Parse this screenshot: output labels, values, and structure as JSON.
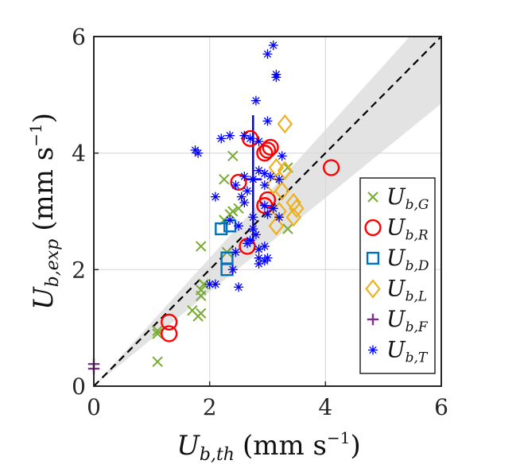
{
  "chart_data": {
    "type": "scatter",
    "title": "",
    "xlabel": {
      "symbol": "U",
      "subscript": "b,th",
      "unit_open": "(mm s",
      "unit_exp": "−1",
      "unit_close": ")"
    },
    "ylabel": {
      "symbol": "U",
      "subscript": "b,exp",
      "unit_open": "(mm s",
      "unit_exp": "−1",
      "unit_close": ")"
    },
    "xlim": [
      0,
      6
    ],
    "ylim": [
      0,
      6
    ],
    "xticks": [
      "0",
      "2",
      "4",
      "6"
    ],
    "yticks": [
      "0",
      "2",
      "4",
      "6"
    ],
    "grid": true,
    "legend_position": "right-bottom inside",
    "reference_line": {
      "label": "y = x",
      "style": "dashed",
      "color": "#000000"
    },
    "uncertainty_band": {
      "color": "#e3e3e3",
      "lower_slope_at_max": [
        6,
        4.85
      ],
      "upper_slope_at_max": [
        6,
        6.6
      ]
    },
    "series": [
      {
        "name": "U_b,G",
        "symbol": "U",
        "subscript": "b,G",
        "marker": "x",
        "color": "#77ac30",
        "points": [
          [
            1.1,
            0.9
          ],
          [
            1.1,
            0.95
          ],
          [
            1.1,
            0.42
          ],
          [
            1.7,
            1.3
          ],
          [
            1.8,
            1.2
          ],
          [
            1.85,
            1.25
          ],
          [
            1.85,
            1.55
          ],
          [
            1.85,
            1.65
          ],
          [
            1.9,
            1.75
          ],
          [
            1.85,
            2.4
          ],
          [
            2.25,
            2.85
          ],
          [
            2.35,
            2.95
          ],
          [
            2.4,
            3.0
          ],
          [
            2.25,
            3.55
          ],
          [
            2.4,
            3.95
          ],
          [
            2.3,
            2.3
          ],
          [
            3.35,
            2.7
          ],
          [
            3.35,
            3.75
          ],
          [
            2.5,
            3.05
          ]
        ]
      },
      {
        "name": "U_b,R",
        "symbol": "U",
        "subscript": "b,R",
        "marker": "circle",
        "color": "#ff0000",
        "points": [
          [
            1.3,
            1.1
          ],
          [
            1.3,
            0.9
          ],
          [
            2.5,
            3.5
          ],
          [
            2.65,
            2.4
          ],
          [
            2.7,
            4.25
          ],
          [
            2.95,
            4.0
          ],
          [
            3.0,
            4.05
          ],
          [
            3.05,
            4.1
          ],
          [
            3.0,
            3.2
          ],
          [
            2.95,
            3.1
          ],
          [
            4.1,
            3.75
          ]
        ]
      },
      {
        "name": "U_b,D",
        "symbol": "U",
        "subscript": "b,D",
        "marker": "square",
        "color": "#0072bd",
        "points": [
          [
            2.2,
            2.7
          ],
          [
            2.35,
            2.75
          ],
          [
            2.3,
            2.2
          ],
          [
            2.3,
            2.0
          ]
        ]
      },
      {
        "name": "U_b,L",
        "symbol": "U",
        "subscript": "b,L",
        "marker": "diamond",
        "color": "#edb120",
        "points": [
          [
            3.3,
            4.5
          ],
          [
            3.15,
            3.75
          ],
          [
            3.3,
            3.7
          ],
          [
            3.1,
            3.45
          ],
          [
            3.25,
            3.35
          ],
          [
            3.45,
            3.15
          ],
          [
            3.2,
            3.0
          ],
          [
            3.45,
            2.9
          ],
          [
            3.15,
            2.75
          ],
          [
            3.5,
            3.05
          ]
        ]
      },
      {
        "name": "U_b,F",
        "symbol": "U",
        "subscript": "b,F",
        "marker": "plus",
        "color": "#7e2f8e",
        "points": [
          [
            0.0,
            0.38
          ],
          [
            0.0,
            0.3
          ]
        ]
      },
      {
        "name": "U_b,T",
        "symbol": "U",
        "subscript": "b,T",
        "marker": "star",
        "color": "#0000ff",
        "points": [
          [
            3.0,
            5.7
          ],
          [
            3.1,
            5.85
          ],
          [
            3.15,
            5.35
          ],
          [
            3.15,
            5.3
          ],
          [
            2.8,
            4.9
          ],
          [
            3.0,
            4.55
          ],
          [
            2.6,
            4.3
          ],
          [
            2.35,
            4.3
          ],
          [
            2.2,
            4.25
          ],
          [
            1.75,
            4.05
          ],
          [
            1.8,
            4.0
          ],
          [
            2.7,
            4.25
          ],
          [
            2.85,
            4.2
          ],
          [
            3.25,
            3.95
          ],
          [
            2.85,
            3.7
          ],
          [
            2.95,
            3.65
          ],
          [
            3.05,
            3.6
          ],
          [
            3.2,
            3.55
          ],
          [
            2.6,
            3.6
          ],
          [
            2.75,
            3.55
          ],
          [
            2.95,
            3.45
          ],
          [
            2.45,
            3.45
          ],
          [
            2.65,
            3.35
          ],
          [
            2.55,
            3.25
          ],
          [
            2.1,
            3.25
          ],
          [
            2.6,
            3.15
          ],
          [
            2.95,
            3.1
          ],
          [
            3.1,
            3.05
          ],
          [
            3.0,
            2.95
          ],
          [
            2.75,
            2.9
          ],
          [
            3.2,
            2.9
          ],
          [
            2.35,
            2.85
          ],
          [
            2.5,
            2.75
          ],
          [
            2.75,
            2.7
          ],
          [
            2.8,
            2.6
          ],
          [
            2.7,
            2.5
          ],
          [
            2.65,
            2.45
          ],
          [
            2.95,
            2.4
          ],
          [
            2.85,
            2.35
          ],
          [
            2.45,
            2.3
          ],
          [
            2.85,
            2.2
          ],
          [
            2.95,
            2.15
          ],
          [
            3.0,
            2.2
          ],
          [
            2.85,
            2.1
          ],
          [
            2.4,
            2.0
          ],
          [
            2.0,
            1.75
          ],
          [
            2.1,
            1.75
          ],
          [
            2.5,
            1.7
          ]
        ]
      }
    ],
    "error_bar": {
      "x": 2.75,
      "y": 3.55,
      "ymin": 2.45,
      "ymax": 4.65,
      "xmin": 2.6,
      "xmax": 2.9,
      "color": "#0000ff"
    }
  }
}
